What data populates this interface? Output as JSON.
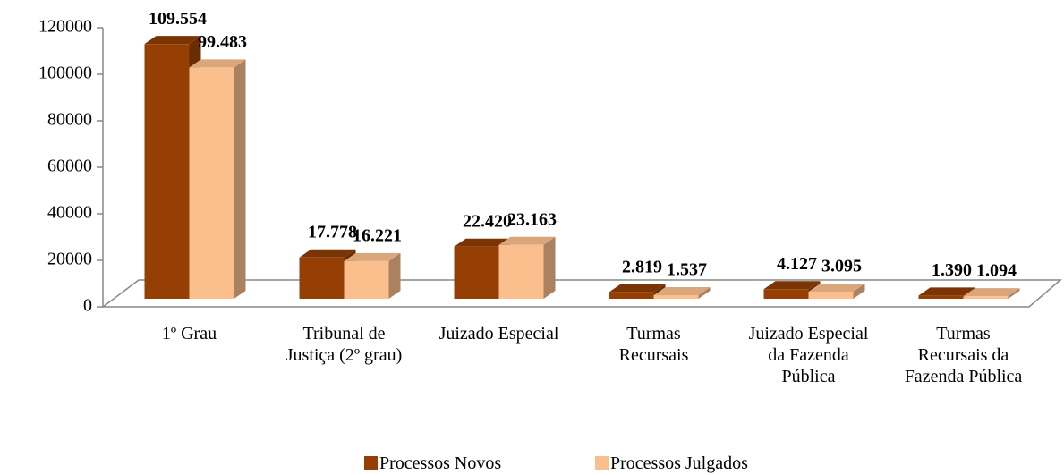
{
  "chart_data": {
    "type": "bar3d",
    "categories": [
      "1º Grau",
      "Tribunal de Justiça (2º grau)",
      "Juizado Especial",
      "Turmas Recursais",
      "Juizado Especial da Fazenda Pública",
      "Turmas Recursais da Fazenda Pública"
    ],
    "series": [
      {
        "name": "Processos Novos",
        "color": "#963f04",
        "values": [
          109554,
          17778,
          22420,
          2819,
          4127,
          1390
        ],
        "value_labels": [
          "109.554",
          "17.778",
          "22.420",
          "2.819",
          "4.127",
          "1.390"
        ]
      },
      {
        "name": "Processos Julgados",
        "color": "#fbbf8e",
        "values": [
          99483,
          16221,
          23163,
          1537,
          3095,
          1094
        ],
        "value_labels": [
          "99.483",
          "16.221",
          "23.163",
          "1.537",
          "3.095",
          "1.094"
        ]
      }
    ],
    "ylim": [
      0,
      120000
    ],
    "yticks": [
      0,
      20000,
      40000,
      60000,
      80000,
      100000,
      120000
    ],
    "grid": false,
    "legend": "bottom"
  }
}
